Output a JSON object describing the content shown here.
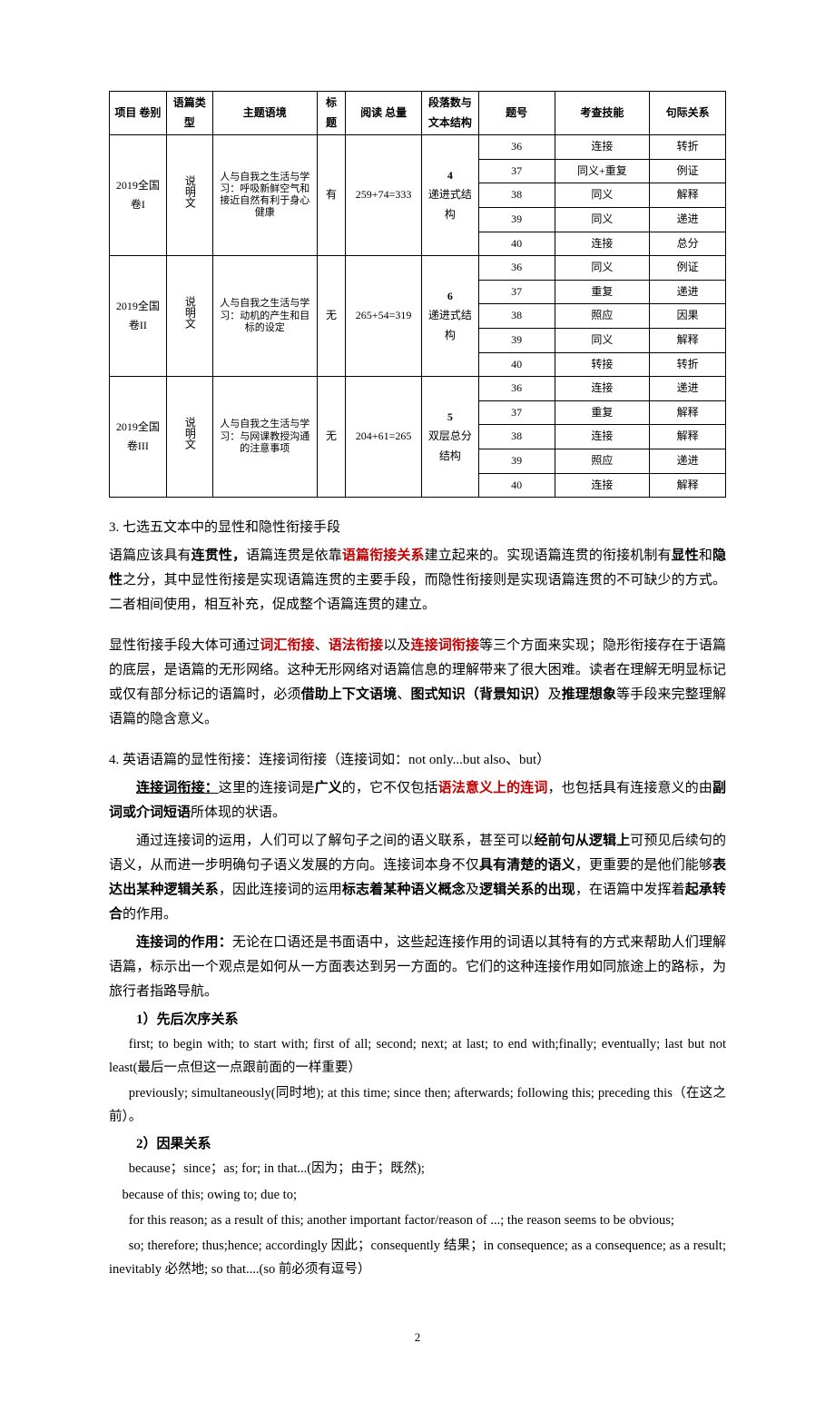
{
  "table": {
    "headers": [
      "项目\n卷别",
      "语篇类型",
      "主题语境",
      "标题",
      "阅读\n总量",
      "段落数与\n文本结构",
      "题号",
      "考查技能",
      "句际关系"
    ],
    "groups": [
      {
        "juanbie": "2019全国卷I",
        "yupian": "说明文",
        "zhuti": "人与自我之生活与学习：呼吸新鲜空气和接近自然有利于身心健康",
        "biaoti": "有",
        "yuedu": "259+74=333",
        "duanluo_num": "4",
        "duanluo_struct": "递进式结构",
        "rows": [
          {
            "tihao": "36",
            "kaocha": "连接",
            "juji": "转折"
          },
          {
            "tihao": "37",
            "kaocha": "同义+重复",
            "juji": "例证"
          },
          {
            "tihao": "38",
            "kaocha": "同义",
            "juji": "解释"
          },
          {
            "tihao": "39",
            "kaocha": "同义",
            "juji": "递进"
          },
          {
            "tihao": "40",
            "kaocha": "连接",
            "juji": "总分"
          }
        ]
      },
      {
        "juanbie": "2019全国卷II",
        "yupian": "说明文",
        "zhuti": "人与自我之生活与学习：动机的产生和目标的设定",
        "biaoti": "无",
        "yuedu": "265+54=319",
        "duanluo_num": "6",
        "duanluo_struct": "递进式结构",
        "rows": [
          {
            "tihao": "36",
            "kaocha": "同义",
            "juji": "例证"
          },
          {
            "tihao": "37",
            "kaocha": "重复",
            "juji": "递进"
          },
          {
            "tihao": "38",
            "kaocha": "照应",
            "juji": "因果"
          },
          {
            "tihao": "39",
            "kaocha": "同义",
            "juji": "解释"
          },
          {
            "tihao": "40",
            "kaocha": "转接",
            "juji": "转折"
          }
        ]
      },
      {
        "juanbie": "2019全国卷III",
        "yupian": "说明文",
        "zhuti": "人与自我之生活与学习：与网课教授沟通的注意事项",
        "biaoti": "无",
        "yuedu": "204+61=265",
        "duanluo_num": "5",
        "duanluo_struct": "双层总分结构",
        "rows": [
          {
            "tihao": "36",
            "kaocha": "连接",
            "juji": "递进"
          },
          {
            "tihao": "37",
            "kaocha": "重复",
            "juji": "解释"
          },
          {
            "tihao": "38",
            "kaocha": "连接",
            "juji": "解释"
          },
          {
            "tihao": "39",
            "kaocha": "照应",
            "juji": "递进"
          },
          {
            "tihao": "40",
            "kaocha": "连接",
            "juji": "解释"
          }
        ]
      }
    ]
  },
  "section3": {
    "head": "3.  七选五文本中的显性和隐性衔接手段",
    "p1a": "语篇应该具有",
    "p1b": "连贯性，",
    "p1c": "语篇连贯是依靠",
    "p1d": "语篇衔接关系",
    "p1e": "建立起来的。实现语篇连贯的衔接机制有",
    "p1f": "显性",
    "p1g": "和",
    "p1h": "隐性",
    "p1i": "之分，其中显性衔接是实现语篇连贯的主要手段，而隐性衔接则是实现语篇连贯的不可缺少的方式。二者相间使用，相互补充，促成整个语篇连贯的建立。",
    "p2a": "显性衔接手段大体可通过",
    "p2b": "词汇衔接",
    "p2c": "、",
    "p2d": "语法衔接",
    "p2e": "以及",
    "p2f": "连接词衔接",
    "p2g": "等三个方面来实现；隐形衔接存在于语篇的底层，是语篇的无形网络。这种无形网络对语篇信息的理解带来了很大困难。读者在理解无明显标记或仅有部分标记的语篇时，必须",
    "p2h": "借助上下文语境",
    "p2i": "、",
    "p2j": "图式知识（背景知识）",
    "p2k": "及",
    "p2l": "推理想象",
    "p2m": "等手段来完整理解语篇的隐含意义。"
  },
  "section4": {
    "head": "4.  英语语篇的显性衔接：连接词衔接（连接词如：not only...but also、but）",
    "p1a": "连接词衔接：",
    "p1b": "这里的连接词是",
    "p1c": "广义",
    "p1d": "的，它不仅包括",
    "p1e": "语法意义上的连词",
    "p1f": "，也包括具有连接意义的由",
    "p1g": "副词或介词短语",
    "p1h": "所体现的状语。",
    "p2a": "通过连接词的运用，人们可以了解句子之间的语义联系，甚至可以",
    "p2b": "经前句从逻辑上",
    "p2c": "可预见后续句的语义，从而进一步明确句子语义发展的方向。连接词本身不仅",
    "p2d": "具有清楚的语义",
    "p2e": "，更重要的是他们能够",
    "p2f": "表达出某种逻辑关系",
    "p2g": "，因此连接词的运用",
    "p2h": "标志着某种语义概念",
    "p2i": "及",
    "p2j": "逻辑关系的出现",
    "p2k": "，在语篇中发挥着",
    "p2l": "起承转合",
    "p2m": "的作用。",
    "p3a": "连接词的作用：",
    "p3b": "无论在口语还是书面语中，这些起连接作用的词语以其特有的方式来帮助人们理解语篇，标示出一个观点是如何从一方面表达到另一方面的。它们的这种连接作用如同旅途上的路标，为旅行者指路导航。"
  },
  "list1": {
    "head": "1）先后次序关系",
    "b1": "first; to begin with; to start with; first of all; second; next; at last; to end with;finally; eventually; last but not least(最后一点但这一点跟前面的一样重要）",
    "b2": "previously; simultaneously(同时地); at this time; since then; afterwards; following this; preceding this（在这之前）。"
  },
  "list2": {
    "head": "2）因果关系",
    "b1": "because；since；as; for; in that...(因为；由于；既然);",
    "b2": "because of this; owing to; due to;",
    "b3": "for this reason; as a result of this; another important factor/reason of ...; the reason seems to be obvious;",
    "b4": "so; therefore; thus;hence; accordingly 因此；consequently 结果；in consequence; as a consequence; as a result; inevitably 必然地; so that....(so 前必须有逗号）"
  },
  "pagenum": "2"
}
